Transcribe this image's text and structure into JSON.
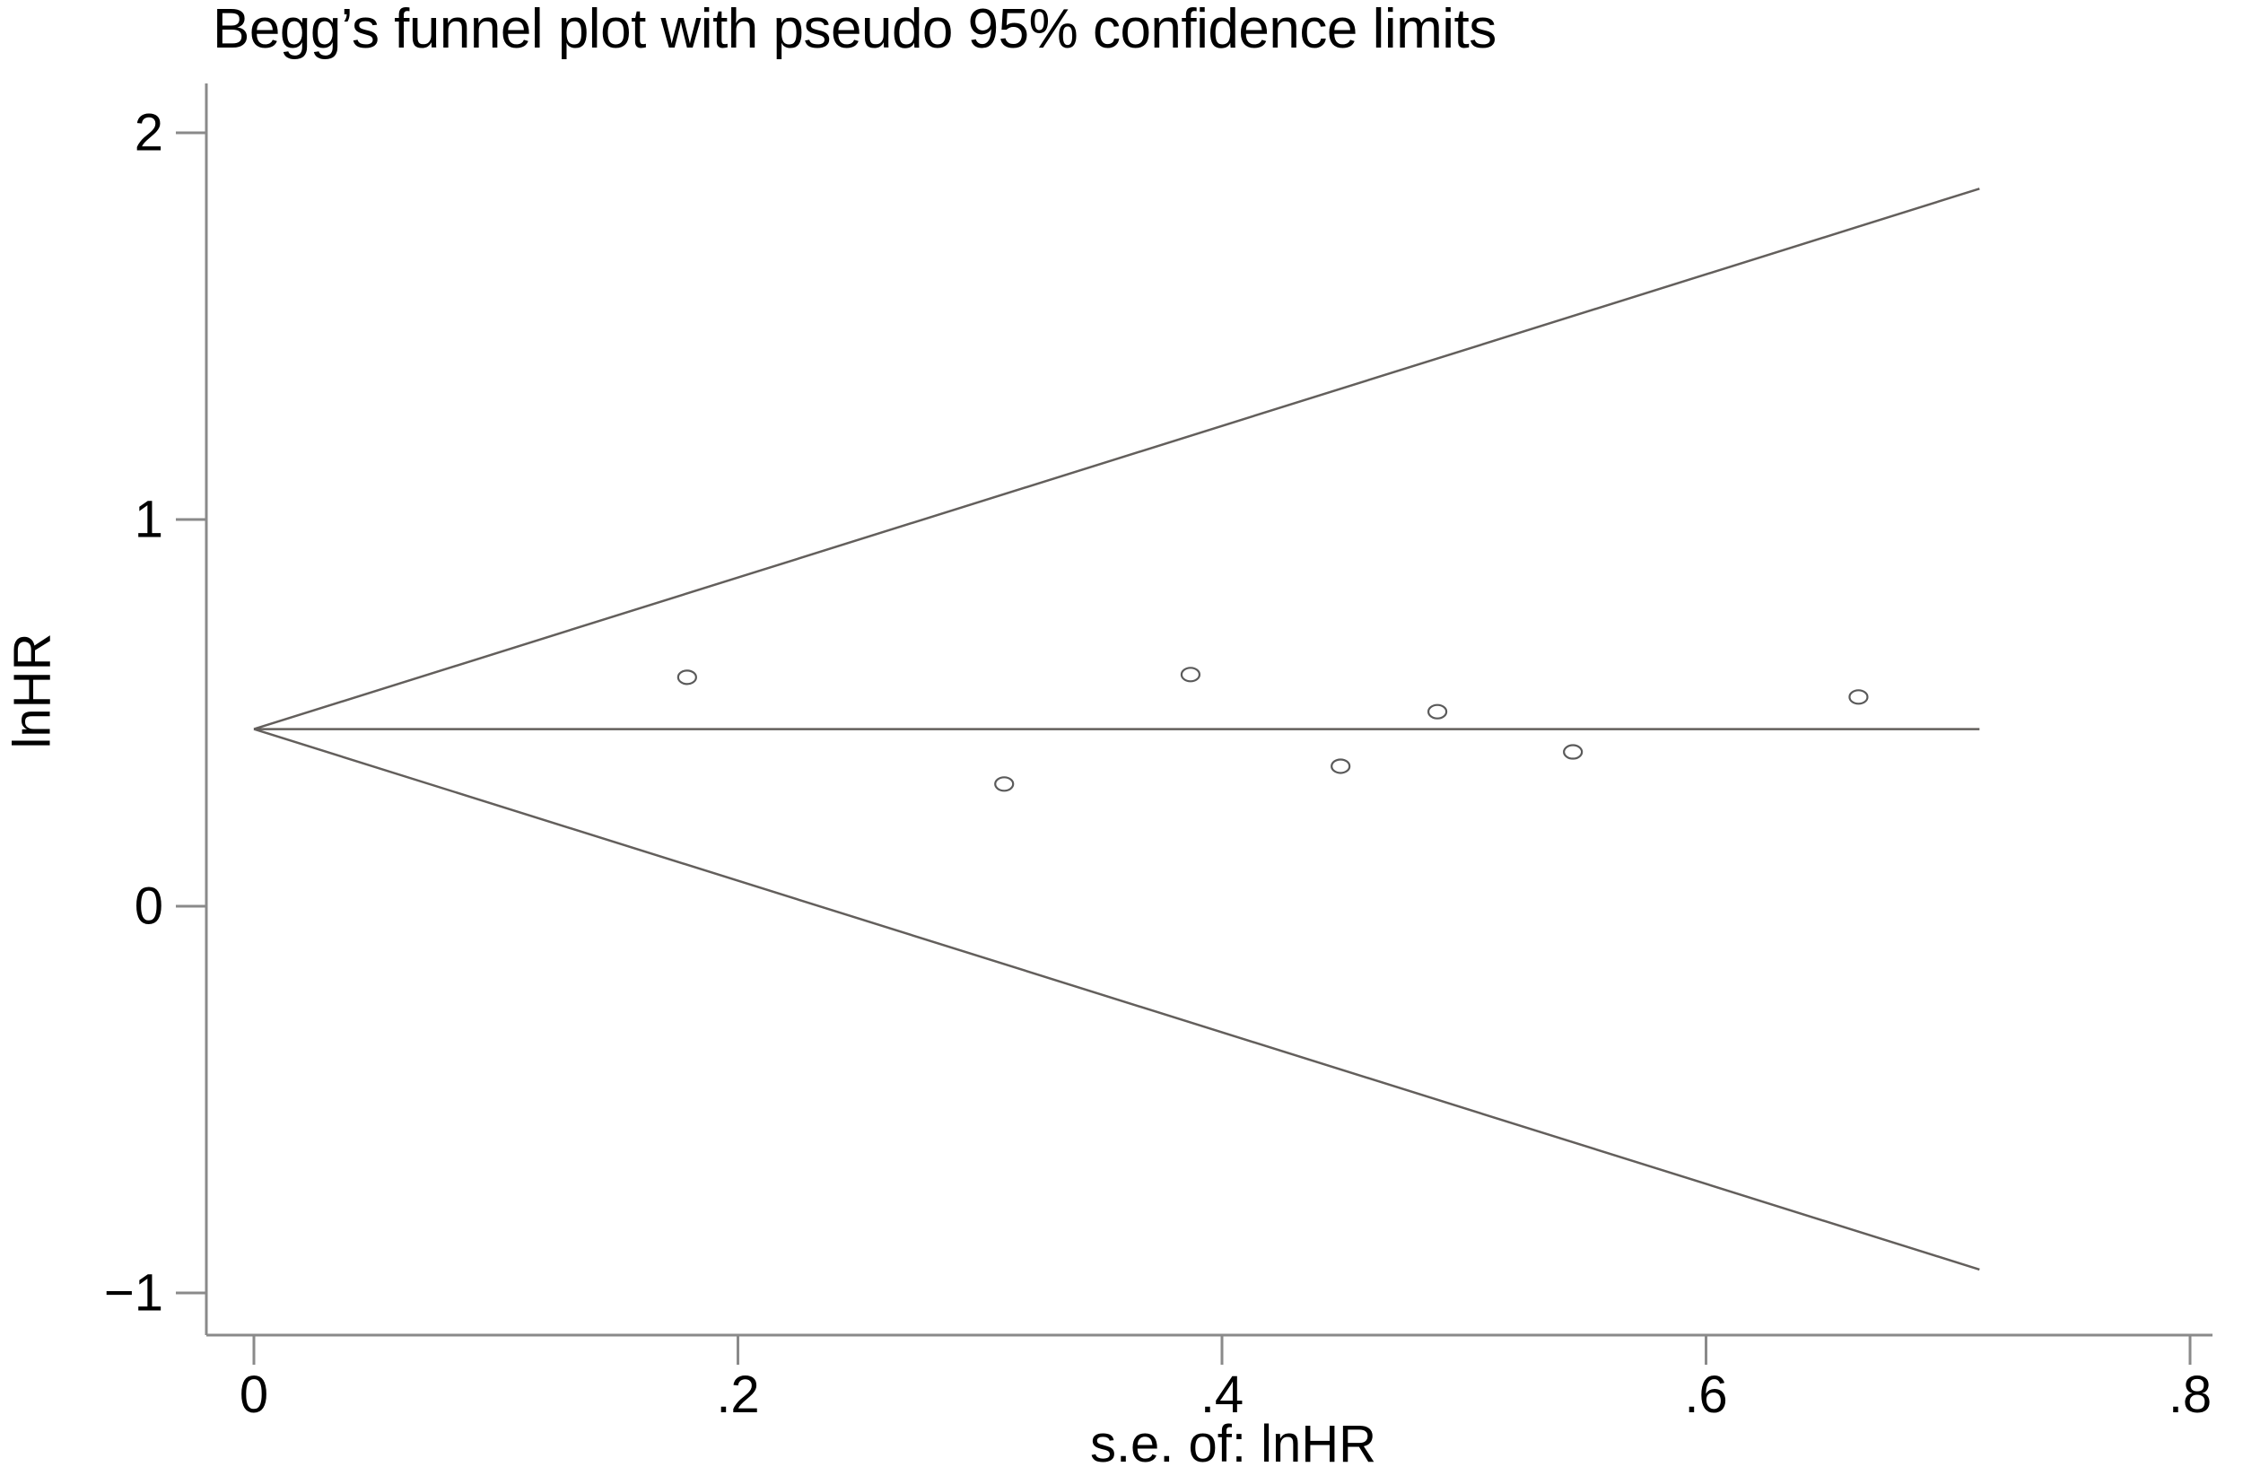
{
  "chart_data": {
    "type": "scatter",
    "title": "Begg’s funnel plot with pseudo 95% confidence limits",
    "xlabel": "s.e. of: lnHR",
    "ylabel": "lnHR",
    "xlim": [
      0,
      0.81
    ],
    "ylim": [
      -1.11,
      2.13
    ],
    "grid": false,
    "legend": null,
    "x_ticks": [
      {
        "value": 0,
        "label": "0"
      },
      {
        "value": 0.2,
        "label": ".2"
      },
      {
        "value": 0.4,
        "label": ".4"
      },
      {
        "value": 0.6,
        "label": ".6"
      },
      {
        "value": 0.8,
        "label": ".8"
      }
    ],
    "y_ticks": [
      {
        "value": 2,
        "label": "2"
      },
      {
        "value": 1,
        "label": "1"
      },
      {
        "value": 0,
        "label": "0"
      },
      {
        "value": -1,
        "label": "−1"
      }
    ],
    "points": [
      {
        "se": 0.179,
        "lnhr": 0.592
      },
      {
        "se": 0.31,
        "lnhr": 0.316
      },
      {
        "se": 0.387,
        "lnhr": 0.599
      },
      {
        "se": 0.449,
        "lnhr": 0.362
      },
      {
        "se": 0.489,
        "lnhr": 0.503
      },
      {
        "se": 0.545,
        "lnhr": 0.399
      },
      {
        "se": 0.663,
        "lnhr": 0.541
      }
    ],
    "funnel": {
      "pooled_lnhr": 0.458,
      "z": 1.96,
      "se_start": 0,
      "se_end": 0.713
    }
  },
  "colors": {
    "background": "#ffffff",
    "axis": "#8a8a8a",
    "funnel_line": "#635f5c",
    "marker": "#5a5a5a",
    "text": "#000000"
  }
}
